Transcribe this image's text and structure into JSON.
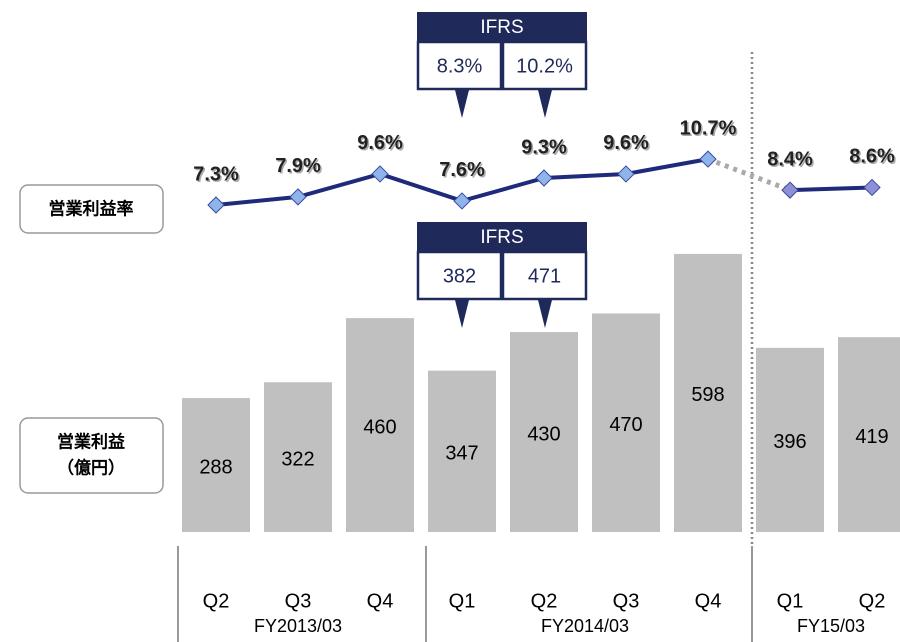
{
  "chart_data": {
    "type": "bar",
    "groups": [
      {
        "label": "FY2013/03",
        "quarters": [
          "Q2",
          "Q3",
          "Q4"
        ]
      },
      {
        "label": "FY2014/03",
        "quarters": [
          "Q1",
          "Q2",
          "Q3",
          "Q4"
        ]
      },
      {
        "label": "FY15/03",
        "quarters": [
          "Q1",
          "Q2"
        ]
      }
    ],
    "series": [
      {
        "name": "営業利益",
        "unit": "（億円）",
        "type": "bar",
        "color": "#c0c0c0",
        "values": [
          288,
          322,
          460,
          347,
          430,
          470,
          598,
          396,
          419
        ]
      },
      {
        "name": "営業利益率",
        "type": "line",
        "color": "#1f2a7a",
        "marker_color": "#8fb4ec",
        "marker_color_later": "#8f8fd8",
        "values": [
          7.3,
          7.9,
          9.6,
          7.6,
          9.3,
          9.6,
          10.7,
          8.4,
          8.6
        ],
        "value_labels": [
          "7.3%",
          "7.9%",
          "9.6%",
          "7.6%",
          "9.3%",
          "9.6%",
          "10.7%",
          "8.4%",
          "8.6%"
        ]
      }
    ],
    "ifrs_margin": {
      "label": "IFRS",
      "values": [
        8.3,
        10.2
      ],
      "value_labels": [
        "8.3%",
        "10.2%"
      ]
    },
    "ifrs_profit": {
      "label": "IFRS",
      "values": [
        382,
        471
      ]
    }
  }
}
